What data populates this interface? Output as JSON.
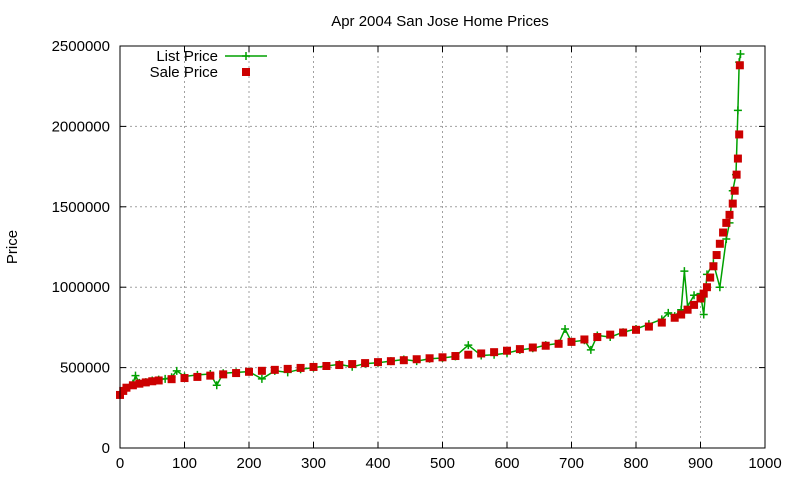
{
  "chart_data": {
    "type": "scatter",
    "title": "Apr 2004 San Jose Home Prices",
    "xlabel": "",
    "ylabel": "Price",
    "xlim": [
      0,
      1000
    ],
    "ylim": [
      0,
      2500000
    ],
    "x_ticks": [
      "0",
      "100",
      "200",
      "300",
      "400",
      "500",
      "600",
      "700",
      "800",
      "900",
      "1000"
    ],
    "y_ticks": [
      "0",
      "500000",
      "1000000",
      "1500000",
      "2000000",
      "2500000"
    ],
    "grid": true,
    "legend_position": "top-left",
    "series": [
      {
        "name": "List Price",
        "style": "line-with-plus-markers",
        "color": "#00a000",
        "x": [
          0,
          10,
          20,
          24,
          30,
          40,
          50,
          60,
          70,
          80,
          88,
          100,
          120,
          140,
          150,
          160,
          180,
          200,
          220,
          240,
          260,
          280,
          300,
          320,
          340,
          360,
          380,
          400,
          420,
          440,
          460,
          480,
          500,
          520,
          540,
          560,
          580,
          600,
          620,
          640,
          660,
          680,
          690,
          700,
          720,
          730,
          740,
          760,
          780,
          800,
          820,
          840,
          850,
          860,
          870,
          875,
          880,
          890,
          900,
          905,
          910,
          920,
          930,
          940,
          945,
          950,
          955,
          958,
          960,
          962
        ],
        "y": [
          330000,
          370000,
          400000,
          450000,
          405000,
          410000,
          420000,
          425000,
          430000,
          440000,
          480000,
          445000,
          455000,
          460000,
          390000,
          465000,
          470000,
          475000,
          430000,
          480000,
          470000,
          490000,
          500000,
          510000,
          520000,
          505000,
          525000,
          530000,
          540000,
          550000,
          540000,
          555000,
          560000,
          570000,
          640000,
          575000,
          580000,
          590000,
          610000,
          620000,
          640000,
          650000,
          740000,
          660000,
          670000,
          610000,
          700000,
          690000,
          720000,
          740000,
          770000,
          800000,
          840000,
          820000,
          860000,
          1100000,
          880000,
          950000,
          960000,
          830000,
          1080000,
          1150000,
          1000000,
          1300000,
          1400000,
          1600000,
          1700000,
          2100000,
          2400000,
          2450000
        ]
      },
      {
        "name": "Sale Price",
        "style": "square-markers",
        "color": "#cc0000",
        "x": [
          0,
          5,
          10,
          20,
          30,
          40,
          50,
          60,
          80,
          100,
          120,
          140,
          160,
          180,
          200,
          220,
          240,
          260,
          280,
          300,
          320,
          340,
          360,
          380,
          400,
          420,
          440,
          460,
          480,
          500,
          520,
          540,
          560,
          580,
          600,
          620,
          640,
          660,
          680,
          700,
          720,
          740,
          760,
          780,
          800,
          820,
          840,
          860,
          870,
          880,
          890,
          900,
          905,
          910,
          915,
          920,
          925,
          930,
          935,
          940,
          945,
          950,
          953,
          956,
          958,
          960,
          961
        ],
        "y": [
          330000,
          355000,
          375000,
          390000,
          400000,
          408000,
          415000,
          420000,
          428000,
          435000,
          442000,
          450000,
          458000,
          466000,
          474000,
          480000,
          486000,
          492000,
          498000,
          504000,
          510000,
          516000,
          522000,
          528000,
          534000,
          540000,
          546000,
          552000,
          558000,
          564000,
          572000,
          580000,
          588000,
          596000,
          605000,
          615000,
          625000,
          636000,
          648000,
          660000,
          675000,
          690000,
          705000,
          718000,
          735000,
          755000,
          780000,
          810000,
          830000,
          860000,
          890000,
          930000,
          960000,
          1000000,
          1060000,
          1130000,
          1200000,
          1270000,
          1340000,
          1400000,
          1450000,
          1520000,
          1600000,
          1700000,
          1800000,
          1950000,
          2380000
        ]
      }
    ]
  }
}
